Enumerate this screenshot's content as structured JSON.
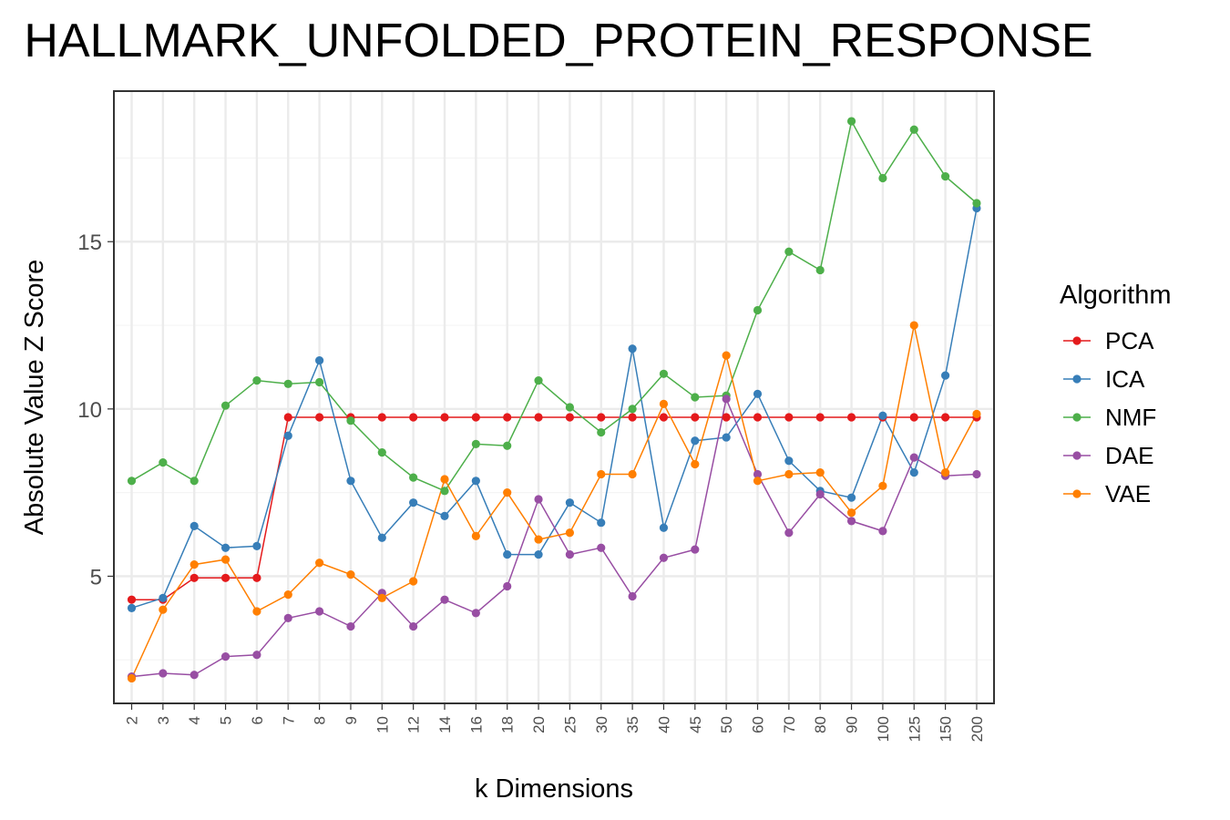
{
  "chart_data": {
    "type": "line",
    "title": "HALLMARK_UNFOLDED_PROTEIN_RESPONSE",
    "xlabel": "k Dimensions",
    "ylabel": "Absolute Value Z Score",
    "categories": [
      "2",
      "3",
      "4",
      "5",
      "6",
      "7",
      "8",
      "9",
      "10",
      "12",
      "14",
      "16",
      "18",
      "20",
      "25",
      "30",
      "35",
      "40",
      "45",
      "50",
      "60",
      "70",
      "80",
      "90",
      "100",
      "125",
      "150",
      "200"
    ],
    "y_ticks": [
      5,
      10,
      15
    ],
    "ylim": [
      1.2,
      19.5
    ],
    "grid": true,
    "legend": {
      "title": "Algorithm",
      "placement": "right"
    },
    "series": [
      {
        "name": "PCA",
        "color": "#e41a1c",
        "values": [
          4.3,
          4.3,
          4.95,
          4.95,
          4.95,
          9.75,
          9.75,
          9.75,
          9.75,
          9.75,
          9.75,
          9.75,
          9.75,
          9.75,
          9.75,
          9.75,
          9.75,
          9.75,
          9.75,
          9.75,
          9.75,
          9.75,
          9.75,
          9.75,
          9.75,
          9.75,
          9.75,
          9.75
        ]
      },
      {
        "name": "ICA",
        "color": "#377eb8",
        "values": [
          4.05,
          4.35,
          6.5,
          5.85,
          5.9,
          9.2,
          11.45,
          7.85,
          6.15,
          7.2,
          6.8,
          7.85,
          5.65,
          5.65,
          7.2,
          6.6,
          11.8,
          6.45,
          9.05,
          9.15,
          10.45,
          8.45,
          7.55,
          7.35,
          9.8,
          8.1,
          11.0,
          16.0
        ]
      },
      {
        "name": "NMF",
        "color": "#4daf4a",
        "values": [
          7.85,
          8.4,
          7.85,
          10.1,
          10.85,
          10.75,
          10.8,
          9.65,
          8.7,
          7.95,
          7.55,
          8.95,
          8.9,
          10.85,
          10.05,
          9.3,
          10.0,
          11.05,
          10.35,
          10.4,
          12.95,
          14.7,
          14.15,
          18.6,
          16.9,
          18.35,
          16.95,
          16.15
        ]
      },
      {
        "name": "DAE",
        "color": "#984ea3",
        "values": [
          2.0,
          2.1,
          2.05,
          2.6,
          2.65,
          3.75,
          3.95,
          3.5,
          4.5,
          3.5,
          4.3,
          3.9,
          4.7,
          7.3,
          5.65,
          5.85,
          4.4,
          5.55,
          5.8,
          10.3,
          8.05,
          6.3,
          7.45,
          6.65,
          6.35,
          8.55,
          8.0,
          8.05
        ]
      },
      {
        "name": "VAE",
        "color": "#ff7f00",
        "values": [
          1.95,
          4.0,
          5.35,
          5.5,
          3.95,
          4.45,
          5.4,
          5.05,
          4.35,
          4.85,
          7.9,
          6.2,
          7.5,
          6.1,
          6.3,
          8.05,
          8.05,
          10.15,
          8.35,
          11.6,
          7.85,
          8.05,
          8.1,
          6.9,
          7.7,
          12.5,
          8.1,
          9.85
        ]
      }
    ]
  }
}
